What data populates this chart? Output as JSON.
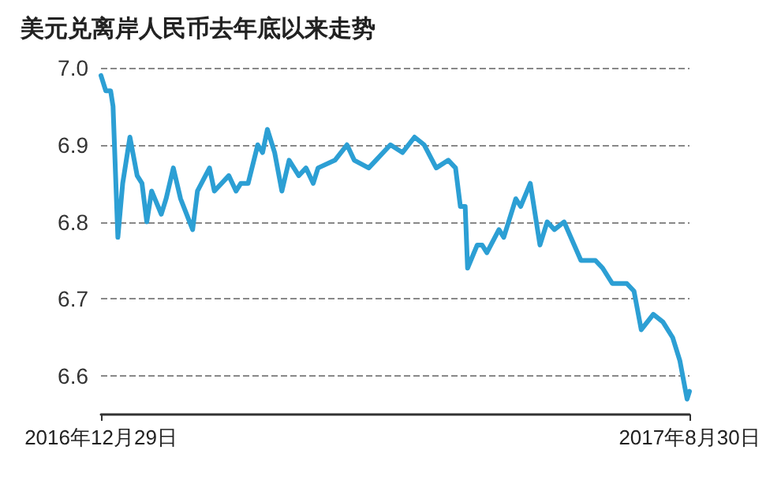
{
  "chart_data": {
    "type": "line",
    "title": "美元兑离岸人民币去年底以来走势",
    "x": [
      "2016-12-29",
      "2016-12-31",
      "2017-01-02",
      "2017-01-03",
      "2017-01-05",
      "2017-01-07",
      "2017-01-10",
      "2017-01-13",
      "2017-01-15",
      "2017-01-17",
      "2017-01-19",
      "2017-01-23",
      "2017-01-25",
      "2017-01-28",
      "2017-01-31",
      "2017-02-05",
      "2017-02-07",
      "2017-02-12",
      "2017-02-14",
      "2017-02-20",
      "2017-02-23",
      "2017-02-25",
      "2017-02-28",
      "2017-03-04",
      "2017-03-06",
      "2017-03-08",
      "2017-03-11",
      "2017-03-14",
      "2017-03-17",
      "2017-03-21",
      "2017-03-24",
      "2017-03-27",
      "2017-03-29",
      "2017-04-05",
      "2017-04-10",
      "2017-04-13",
      "2017-04-19",
      "2017-04-22",
      "2017-04-28",
      "2017-05-03",
      "2017-05-08",
      "2017-05-12",
      "2017-05-17",
      "2017-05-22",
      "2017-05-25",
      "2017-05-27",
      "2017-05-29",
      "2017-05-30",
      "2017-06-03",
      "2017-06-05",
      "2017-06-07",
      "2017-06-12",
      "2017-06-14",
      "2017-06-19",
      "2017-06-21",
      "2017-06-25",
      "2017-06-29",
      "2017-07-02",
      "2017-07-05",
      "2017-07-09",
      "2017-07-16",
      "2017-07-19",
      "2017-07-22",
      "2017-07-25",
      "2017-07-29",
      "2017-08-04",
      "2017-08-07",
      "2017-08-10",
      "2017-08-15",
      "2017-08-19",
      "2017-08-23",
      "2017-08-26",
      "2017-08-29",
      "2017-08-30"
    ],
    "values": [
      6.99,
      6.97,
      6.97,
      6.95,
      6.78,
      6.85,
      6.91,
      6.86,
      6.85,
      6.8,
      6.84,
      6.81,
      6.83,
      6.87,
      6.83,
      6.79,
      6.84,
      6.87,
      6.84,
      6.86,
      6.84,
      6.85,
      6.85,
      6.9,
      6.89,
      6.92,
      6.89,
      6.84,
      6.88,
      6.86,
      6.87,
      6.85,
      6.87,
      6.88,
      6.9,
      6.88,
      6.87,
      6.88,
      6.9,
      6.89,
      6.91,
      6.9,
      6.87,
      6.88,
      6.87,
      6.82,
      6.82,
      6.74,
      6.77,
      6.77,
      6.76,
      6.79,
      6.78,
      6.83,
      6.82,
      6.85,
      6.77,
      6.8,
      6.79,
      6.8,
      6.75,
      6.75,
      6.75,
      6.74,
      6.72,
      6.72,
      6.71,
      6.66,
      6.68,
      6.67,
      6.65,
      6.62,
      6.57,
      6.58
    ],
    "color": "#2c9fd4",
    "xlim": [
      "2016-12-29",
      "2017-08-30"
    ],
    "xticks": [
      {
        "value": "2016-12-29",
        "label": "2016年12月29日"
      },
      {
        "value": "2017-08-30",
        "label": "2017年8月30日"
      }
    ],
    "ylim": [
      6.55,
      7.0
    ],
    "yticks": [
      {
        "value": 6.6,
        "label": "6.6"
      },
      {
        "value": 6.7,
        "label": "6.7"
      },
      {
        "value": 6.8,
        "label": "6.8"
      },
      {
        "value": 6.9,
        "label": "6.9"
      },
      {
        "value": 7.0,
        "label": "7.0"
      }
    ],
    "grid": "y",
    "marker": "none",
    "line_style": "solid"
  }
}
